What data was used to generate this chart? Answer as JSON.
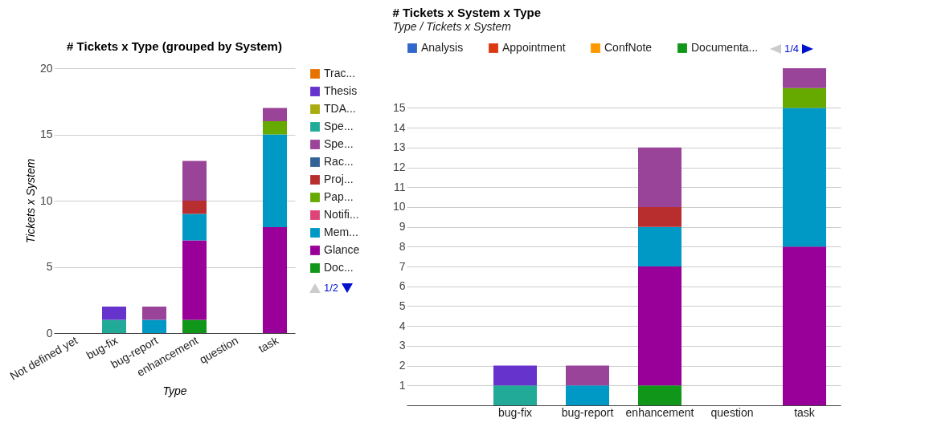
{
  "chart_data": [
    {
      "type": "bar",
      "stacked": true,
      "title": "# Tickets x Type (grouped by System)",
      "xlabel": "Type",
      "ylabel": "Tickets x System",
      "categories": [
        "Not defined yet",
        "bug-fix",
        "bug-report",
        "enhancement",
        "question",
        "task"
      ],
      "series": [
        {
          "name": "Doc...",
          "color": "#109618",
          "values": [
            null,
            null,
            null,
            1,
            null,
            null
          ]
        },
        {
          "name": "Glance",
          "color": "#990099",
          "values": [
            null,
            null,
            null,
            6,
            null,
            8
          ]
        },
        {
          "name": "Mem...",
          "color": "#0099c6",
          "values": [
            null,
            null,
            1,
            2,
            null,
            7
          ]
        },
        {
          "name": "Notifi...",
          "color": "#dd4477",
          "values": [
            null,
            null,
            null,
            null,
            null,
            null
          ]
        },
        {
          "name": "Pap...",
          "color": "#66aa00",
          "values": [
            null,
            null,
            null,
            null,
            null,
            1
          ]
        },
        {
          "name": "Proj...",
          "color": "#b82e2e",
          "values": [
            null,
            null,
            null,
            1,
            null,
            null
          ]
        },
        {
          "name": "Rac...",
          "color": "#316395",
          "values": [
            null,
            null,
            null,
            null,
            null,
            null
          ]
        },
        {
          "name": "Spe...",
          "color": "#994499",
          "values": [
            null,
            null,
            1,
            3,
            null,
            1
          ]
        },
        {
          "name": "Spe...",
          "color": "#22aa99",
          "values": [
            null,
            1,
            null,
            null,
            null,
            null
          ]
        },
        {
          "name": "TDA...",
          "color": "#aaaa11",
          "values": [
            null,
            null,
            null,
            null,
            null,
            null
          ]
        },
        {
          "name": "Thesis",
          "color": "#6633cc",
          "values": [
            null,
            1,
            null,
            null,
            null,
            null
          ]
        },
        {
          "name": "Trac...",
          "color": "#e67300",
          "values": [
            null,
            null,
            null,
            null,
            null,
            null
          ]
        }
      ],
      "ylim": [
        0,
        20
      ],
      "yticks": [
        0,
        5,
        10,
        15,
        20
      ],
      "grid": "y",
      "legend": "right",
      "annotations": [
        "1/2"
      ]
    },
    {
      "type": "bar",
      "stacked": true,
      "title": "# Tickets x System x Type",
      "subtitle": "Type / Tickets x System",
      "categories": [
        null,
        "bug-fix",
        "bug-report",
        "enhancement",
        "question",
        "task"
      ],
      "series": [
        {
          "name": "Analysis",
          "color": "#3366cc",
          "values": [
            null,
            null,
            null,
            null,
            null,
            null
          ]
        },
        {
          "name": "Appointment",
          "color": "#dc3912",
          "values": [
            null,
            null,
            null,
            null,
            null,
            null
          ]
        },
        {
          "name": "ConfNote",
          "color": "#ff9900",
          "values": [
            null,
            null,
            null,
            null,
            null,
            null
          ]
        },
        {
          "name": "Documenta...",
          "color": "#109618",
          "values": [
            null,
            null,
            null,
            1,
            null,
            null
          ]
        },
        {
          "color": "#990099",
          "values": [
            null,
            null,
            null,
            6,
            null,
            8
          ]
        },
        {
          "color": "#0099c6",
          "values": [
            null,
            null,
            1,
            2,
            null,
            7
          ]
        },
        {
          "color": "#66aa00",
          "values": [
            null,
            null,
            null,
            null,
            null,
            1
          ]
        },
        {
          "color": "#b82e2e",
          "values": [
            null,
            null,
            null,
            1,
            null,
            null
          ]
        },
        {
          "color": "#994499",
          "values": [
            null,
            null,
            1,
            3,
            null,
            1
          ]
        },
        {
          "color": "#22aa99",
          "values": [
            null,
            1,
            null,
            null,
            null,
            null
          ]
        },
        {
          "color": "#6633cc",
          "values": [
            null,
            1,
            null,
            null,
            null,
            null
          ]
        }
      ],
      "ylim": [
        0,
        17
      ],
      "yticks": [
        1,
        2,
        3,
        4,
        5,
        6,
        7,
        8,
        9,
        10,
        11,
        12,
        13,
        14,
        15
      ],
      "grid": "y",
      "legend": "top",
      "annotations": [
        "1/4"
      ]
    }
  ]
}
